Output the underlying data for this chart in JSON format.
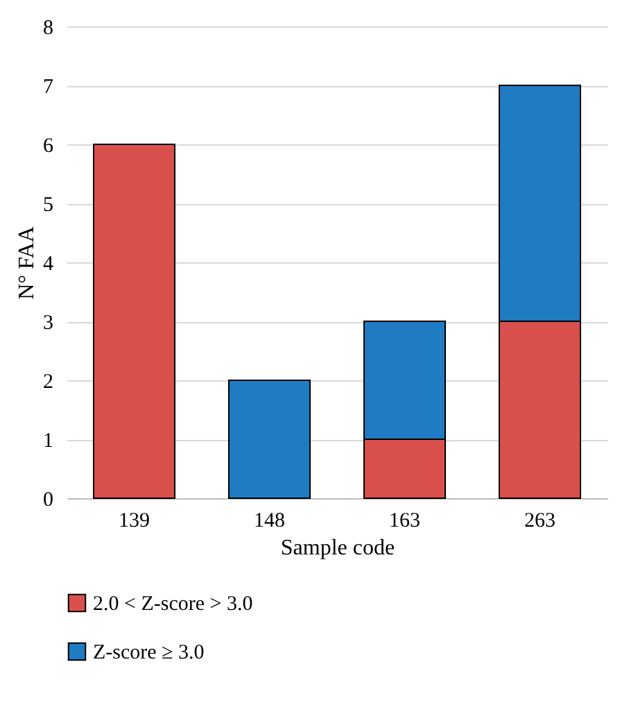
{
  "chart_data": {
    "type": "bar",
    "xlabel": "Sample code",
    "ylabel": "N° FAA",
    "categories": [
      "139",
      "148",
      "163",
      "263"
    ],
    "stacked": true,
    "series": [
      {
        "name": "2.0 < Z-score > 3.0",
        "color": "#d9504c",
        "values": [
          6,
          null,
          1,
          3
        ]
      },
      {
        "name": "Z-score ≥ 3.0",
        "color": "#1f7bc2",
        "values": [
          null,
          2,
          2,
          4
        ]
      }
    ],
    "ylim": [
      0,
      8
    ],
    "yticks": [
      0,
      1,
      2,
      3,
      4,
      5,
      6,
      7,
      8
    ],
    "grid": "y",
    "legend": "bottom"
  }
}
